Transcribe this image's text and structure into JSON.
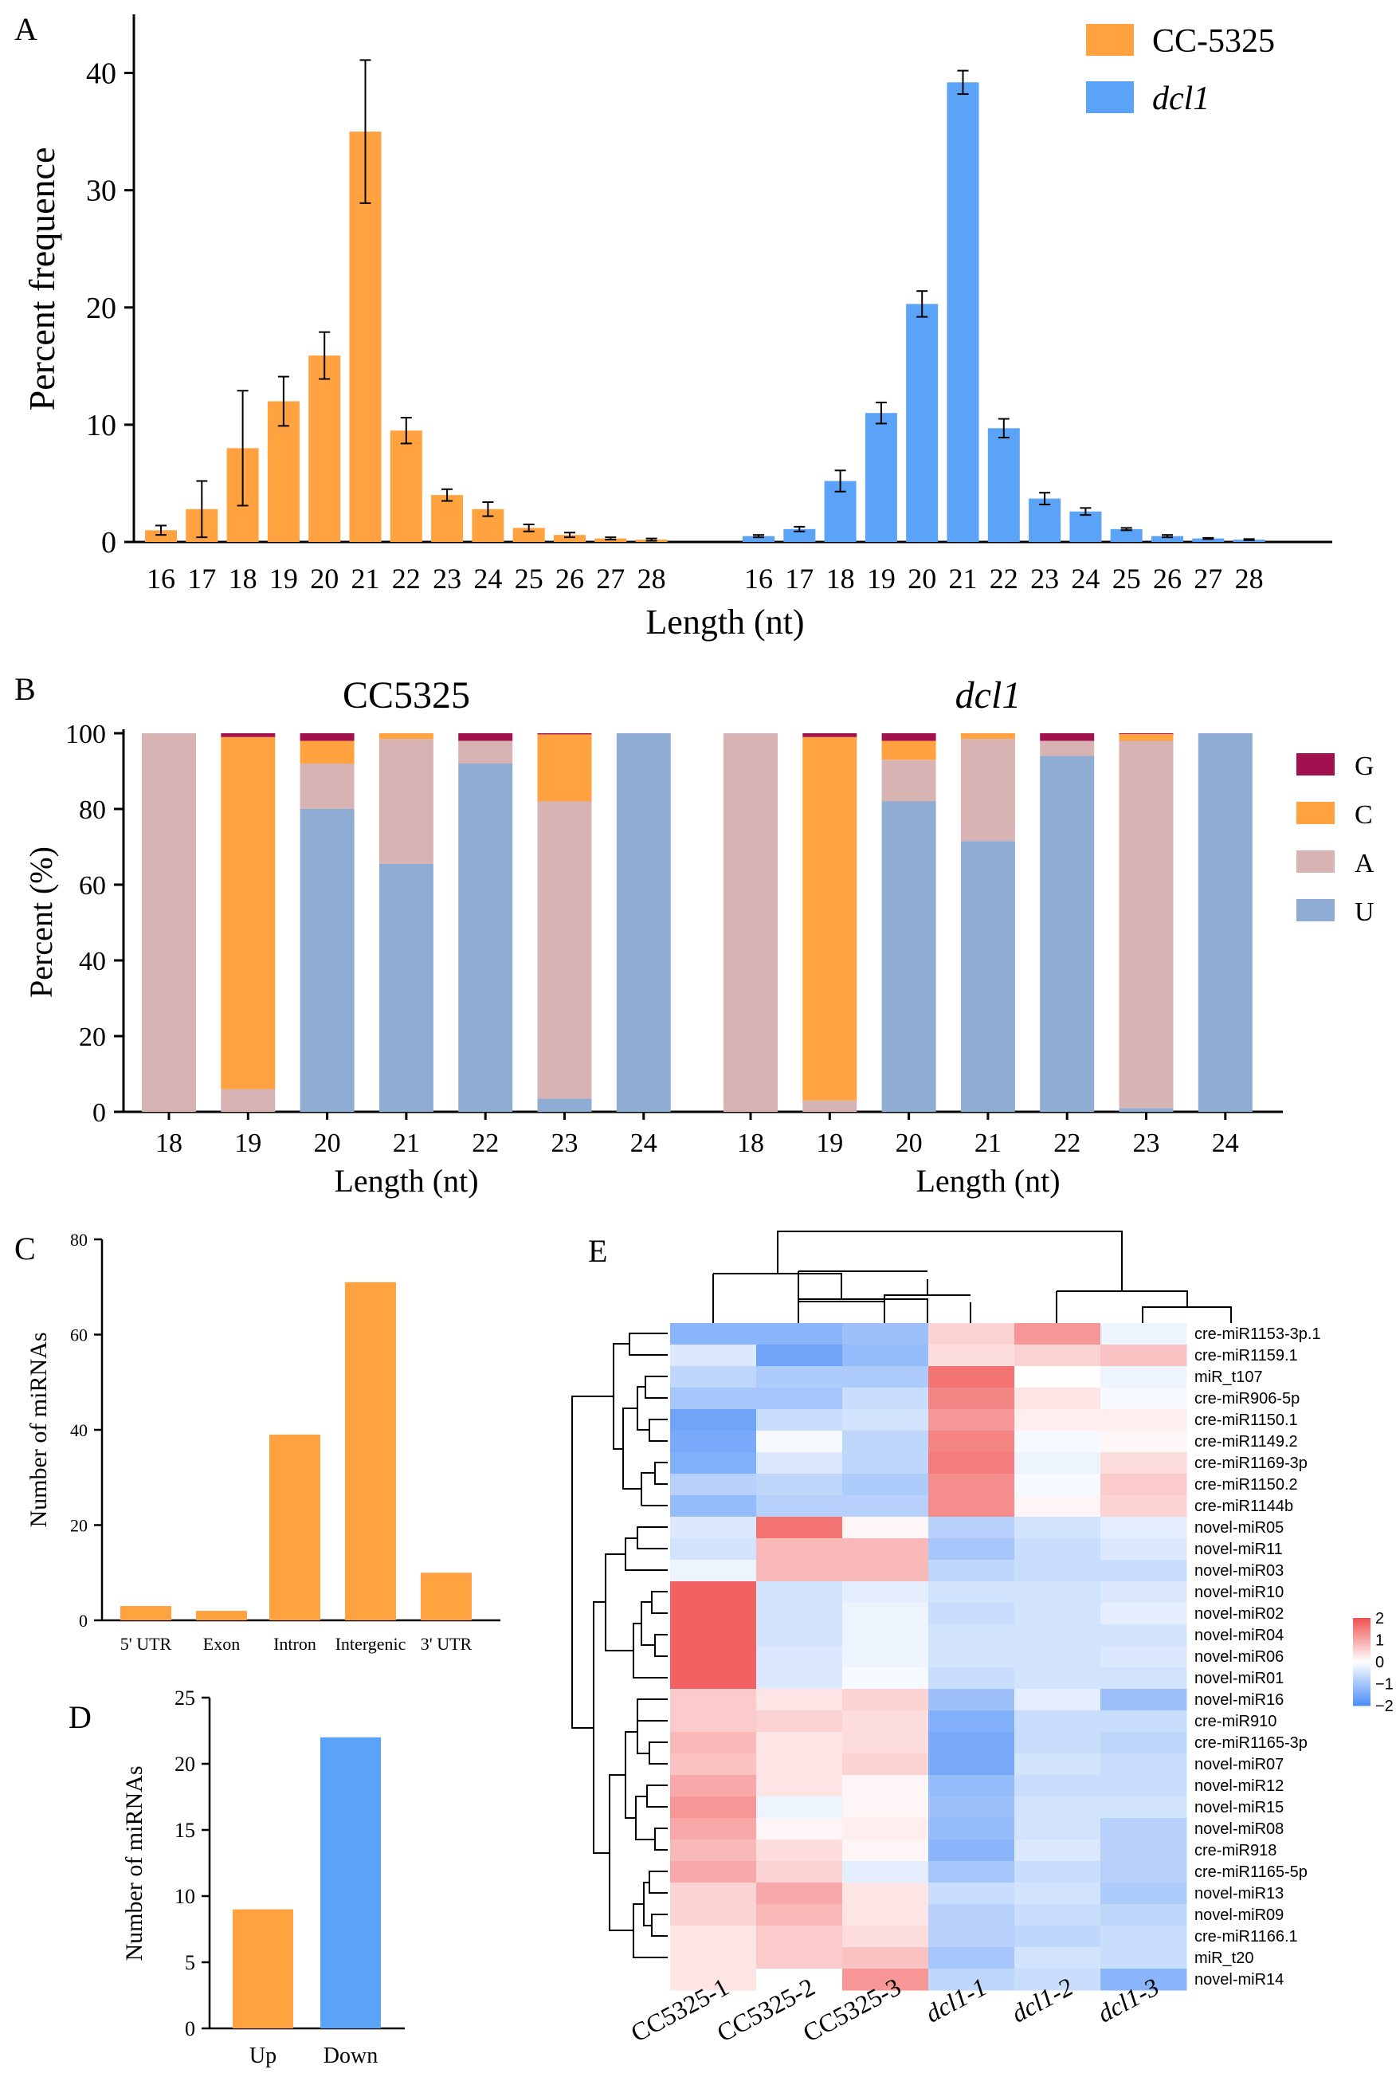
{
  "colors": {
    "orange": "#FFA23F",
    "blue": "#5AA3F7",
    "G": "#A0114E",
    "C": "#FFA23F",
    "A": "#D8B3B4",
    "U": "#8FACD4",
    "heat_neg": "#4C8DF7",
    "heat_mid": "#FFFFFF",
    "heat_pos": "#F05050"
  },
  "panels": {
    "A": "A",
    "B": "B",
    "C": "C",
    "D": "D",
    "E": "E"
  },
  "chart_data": [
    {
      "panel": "A",
      "type": "bar",
      "categories": [
        "16",
        "17",
        "18",
        "19",
        "20",
        "21",
        "22",
        "23",
        "24",
        "25",
        "26",
        "27",
        "28"
      ],
      "series": [
        {
          "name": "CC-5325",
          "values": [
            1.0,
            2.8,
            8.0,
            12.0,
            15.9,
            35.0,
            9.5,
            4.0,
            2.8,
            1.2,
            0.6,
            0.3,
            0.2
          ],
          "errors": [
            0.4,
            2.4,
            4.9,
            2.1,
            2.0,
            6.1,
            1.1,
            0.5,
            0.6,
            0.3,
            0.2,
            0.1,
            0.1
          ]
        },
        {
          "name": "dcl1",
          "values": [
            0.5,
            1.1,
            5.2,
            11.0,
            20.3,
            39.2,
            9.7,
            3.7,
            2.6,
            1.1,
            0.5,
            0.3,
            0.2
          ],
          "errors": [
            0.1,
            0.2,
            0.9,
            0.9,
            1.1,
            1.0,
            0.8,
            0.5,
            0.3,
            0.1,
            0.1,
            0.05,
            0.05
          ]
        }
      ],
      "xlabel": "Length (nt)",
      "ylabel": "Percent frequence",
      "ylim": [
        0,
        45
      ],
      "yticks": [
        "0",
        "10",
        "20",
        "30",
        "40"
      ]
    },
    {
      "panel": "B",
      "type": "bar",
      "stacked": true,
      "subtitles": [
        "CC5325",
        "dcl1"
      ],
      "categories": [
        "18",
        "19",
        "20",
        "21",
        "22",
        "23",
        "24"
      ],
      "stack_order": [
        "U",
        "A",
        "C",
        "G"
      ],
      "legend": [
        "G",
        "C",
        "A",
        "U"
      ],
      "groups": [
        {
          "name": "CC5325",
          "U": [
            0,
            0,
            80,
            65.5,
            92,
            3.5,
            100
          ],
          "A": [
            100,
            6,
            12,
            33,
            6,
            78.5,
            0
          ],
          "C": [
            0,
            93,
            6,
            1.5,
            0,
            17.7,
            0
          ],
          "G": [
            0,
            1,
            2,
            0,
            2,
            0.3,
            0
          ]
        },
        {
          "name": "dcl1",
          "U": [
            0,
            0,
            82,
            71.5,
            94,
            1,
            100
          ],
          "A": [
            100,
            3,
            11,
            27,
            4,
            97,
            0
          ],
          "C": [
            0,
            96,
            5,
            1.5,
            0,
            1.8,
            0
          ],
          "G": [
            0,
            1,
            2,
            0,
            2,
            0.2,
            0
          ]
        }
      ],
      "xlabel": "Length (nt)",
      "ylabel": "Percent (%)",
      "ylim": [
        0,
        100
      ],
      "yticks": [
        "0",
        "20",
        "40",
        "60",
        "80",
        "100"
      ]
    },
    {
      "panel": "C",
      "type": "bar",
      "categories": [
        "5' UTR",
        "Exon",
        "Intron",
        "Intergenic",
        "3' UTR"
      ],
      "values": [
        3,
        2,
        39,
        71,
        10
      ],
      "ylabel": "Number of miRNAs",
      "ylim": [
        0,
        80
      ],
      "yticks": [
        "0",
        "20",
        "40",
        "60",
        "80"
      ]
    },
    {
      "panel": "D",
      "type": "bar",
      "categories": [
        "Up",
        "Down"
      ],
      "values": [
        9,
        22
      ],
      "ylabel": "Number of miRNAs",
      "ylim": [
        0,
        25
      ],
      "yticks": [
        "0",
        "5",
        "10",
        "15",
        "20",
        "25"
      ]
    },
    {
      "panel": "E",
      "type": "heatmap",
      "columns": [
        "CC5325-1",
        "CC5325-2",
        "CC5325-3",
        "dcl1-1",
        "dcl1-2",
        "dcl1-3"
      ],
      "rows": [
        "cre-miR1153-3p.1",
        "cre-miR1159.1",
        "miR_t107",
        "cre-miR906-5p",
        "cre-miR1150.1",
        "cre-miR1149.2",
        "cre-miR1169-3p",
        "cre-miR1150.2",
        "cre-miR1144b",
        "novel-miR05",
        "novel-miR11",
        "novel-miR03",
        "novel-miR10",
        "novel-miR02",
        "novel-miR04",
        "novel-miR06",
        "novel-miR01",
        "novel-miR16",
        "cre-miR910",
        "cre-miR1165-3p",
        "novel-miR07",
        "novel-miR12",
        "novel-miR15",
        "novel-miR08",
        "cre-miR918",
        "cre-miR1165-5p",
        "novel-miR13",
        "novel-miR09",
        "cre-miR1166.1",
        "miR_t20",
        "novel-miR14"
      ],
      "values": [
        [
          -1.3,
          -1.3,
          -1.1,
          0.5,
          1.2,
          -0.2
        ],
        [
          -0.4,
          -1.6,
          -1.2,
          0.4,
          0.5,
          0.7
        ],
        [
          -0.7,
          -0.9,
          -0.9,
          1.6,
          0.0,
          -0.2
        ],
        [
          -1.0,
          -1.0,
          -0.6,
          1.4,
          0.3,
          -0.1
        ],
        [
          -1.6,
          -0.6,
          -0.5,
          1.2,
          0.2,
          0.2
        ],
        [
          -1.5,
          -0.1,
          -0.7,
          1.4,
          -0.1,
          0.1
        ],
        [
          -1.4,
          -0.4,
          -0.7,
          1.5,
          -0.2,
          0.4
        ],
        [
          -0.8,
          -0.7,
          -0.9,
          1.3,
          -0.1,
          0.6
        ],
        [
          -1.2,
          -0.8,
          -0.8,
          1.3,
          0.1,
          0.5
        ],
        [
          -0.4,
          1.6,
          0.1,
          -0.8,
          -0.5,
          -0.3
        ],
        [
          -0.5,
          0.8,
          0.8,
          -1.0,
          -0.6,
          -0.4
        ],
        [
          -0.2,
          0.8,
          0.8,
          -0.7,
          -0.6,
          -0.6
        ],
        [
          1.8,
          -0.5,
          -0.3,
          -0.5,
          -0.5,
          -0.4
        ],
        [
          1.8,
          -0.5,
          -0.2,
          -0.6,
          -0.5,
          -0.3
        ],
        [
          1.8,
          -0.5,
          -0.2,
          -0.5,
          -0.5,
          -0.5
        ],
        [
          1.8,
          -0.4,
          -0.2,
          -0.5,
          -0.5,
          -0.4
        ],
        [
          1.8,
          -0.4,
          -0.1,
          -0.6,
          -0.5,
          -0.5
        ],
        [
          0.6,
          0.3,
          0.5,
          -1.1,
          -0.3,
          -1.1
        ],
        [
          0.6,
          0.5,
          0.4,
          -1.4,
          -0.6,
          -0.6
        ],
        [
          0.8,
          0.3,
          0.4,
          -1.5,
          -0.6,
          -0.7
        ],
        [
          0.7,
          0.3,
          0.5,
          -1.5,
          -0.5,
          -0.6
        ],
        [
          1.0,
          0.3,
          0.1,
          -1.2,
          -0.6,
          -0.6
        ],
        [
          1.2,
          -0.2,
          0.1,
          -1.1,
          -0.5,
          -0.5
        ],
        [
          1.0,
          0.1,
          0.2,
          -1.2,
          -0.5,
          -0.8
        ],
        [
          0.8,
          0.4,
          0.1,
          -1.3,
          -0.4,
          -0.8
        ],
        [
          1.0,
          0.5,
          -0.3,
          -1.0,
          -0.6,
          -0.8
        ],
        [
          0.5,
          1.0,
          0.3,
          -0.6,
          -0.5,
          -0.9
        ],
        [
          0.5,
          0.8,
          0.3,
          -0.8,
          -0.6,
          -0.7
        ],
        [
          0.3,
          0.6,
          0.4,
          -0.8,
          -0.7,
          -0.6
        ],
        [
          0.3,
          0.6,
          0.7,
          -1.0,
          -0.5,
          -0.6
        ],
        [
          0.3,
          0.0,
          1.2,
          -0.7,
          -0.6,
          -1.3
        ]
      ],
      "colorbar_ticks": [
        "2",
        "1",
        "0",
        "−1",
        "−2"
      ],
      "colorbar_range": [
        -2,
        2
      ]
    }
  ]
}
